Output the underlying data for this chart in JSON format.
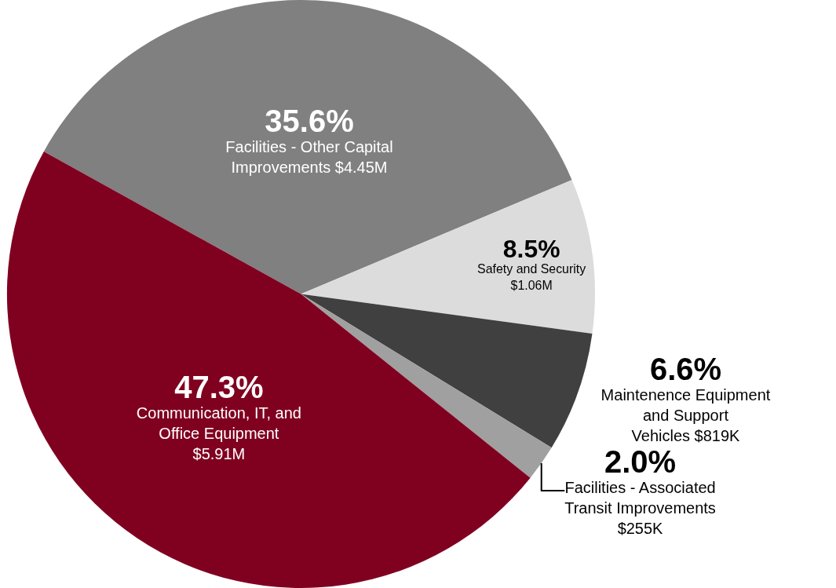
{
  "chart_data": {
    "type": "pie",
    "categories": [
      "Facilities - Other Capital\nImprovements $4.45M",
      "Safety and Security\n$1.06M",
      "Maintenence Equipment\nand Support\nVehicles $819K",
      "Facilities - Associated\nTransit Improvements\n$255K",
      "Communication, IT, and\nOffice Equipment\n$5.91M"
    ],
    "values": [
      35.6,
      8.5,
      6.6,
      2.0,
      47.3
    ],
    "colors": [
      "#808080",
      "#dcdcdc",
      "#404040",
      "#a0a0a0",
      "#800020"
    ],
    "value_labels": [
      "35.6%",
      "8.5%",
      "6.6%",
      "2.0%",
      "47.3%"
    ],
    "legend": false
  }
}
